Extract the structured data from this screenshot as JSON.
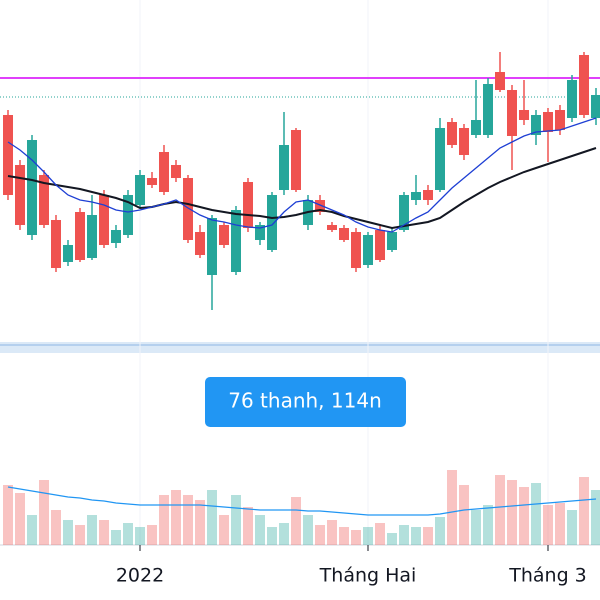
{
  "chart_data": {
    "type": "candlestick",
    "categories": [
      null,
      null,
      null,
      null,
      null,
      null,
      null,
      null,
      null,
      null,
      null,
      "2022",
      null,
      null,
      null,
      null,
      null,
      null,
      null,
      null,
      null,
      null,
      null,
      null,
      null,
      null,
      null,
      null,
      null,
      null,
      "Tháng Hai",
      null,
      null,
      null,
      null,
      null,
      null,
      null,
      null,
      null,
      null,
      null,
      null,
      null,
      null,
      "Tháng 3",
      null,
      null,
      null,
      null
    ],
    "open": [
      225,
      175,
      105,
      165,
      120,
      78,
      128,
      82,
      145,
      97,
      105,
      135,
      162,
      188,
      175,
      162,
      108,
      65,
      115,
      68,
      158,
      100,
      90,
      150,
      210,
      115,
      140,
      115,
      112,
      108,
      75,
      110,
      90,
      110,
      140,
      150,
      150,
      218,
      212,
      205,
      205,
      268,
      250,
      230,
      205,
      228,
      230,
      222,
      285,
      222
    ],
    "high": [
      230,
      180,
      205,
      170,
      125,
      100,
      132,
      145,
      150,
      115,
      150,
      170,
      168,
      195,
      180,
      165,
      115,
      125,
      118,
      134,
      162,
      118,
      148,
      228,
      212,
      145,
      145,
      118,
      115,
      112,
      108,
      114,
      112,
      148,
      165,
      155,
      222,
      222,
      216,
      260,
      262,
      288,
      255,
      260,
      230,
      232,
      235,
      265,
      288,
      252
    ],
    "low": [
      140,
      110,
      100,
      112,
      68,
      74,
      78,
      80,
      92,
      92,
      102,
      132,
      152,
      145,
      158,
      97,
      82,
      30,
      92,
      65,
      108,
      95,
      88,
      145,
      148,
      110,
      125,
      108,
      98,
      68,
      72,
      78,
      88,
      108,
      135,
      135,
      148,
      192,
      180,
      202,
      202,
      248,
      170,
      215,
      195,
      178,
      205,
      218,
      222,
      215
    ],
    "close": [
      145,
      115,
      200,
      115,
      72,
      95,
      80,
      125,
      95,
      110,
      145,
      165,
      155,
      148,
      162,
      100,
      85,
      122,
      95,
      130,
      112,
      115,
      145,
      195,
      150,
      140,
      128,
      110,
      100,
      72,
      105,
      80,
      108,
      145,
      148,
      140,
      212,
      195,
      185,
      220,
      256,
      250,
      204,
      220,
      225,
      208,
      210,
      260,
      225,
      245
    ],
    "colors": {
      "up": "#26a69a",
      "down": "#ef5350"
    },
    "ylim": [
      0,
      340
    ],
    "lines": [
      {
        "color": "#131722",
        "values": [
          164,
          162,
          160,
          157,
          155,
          153,
          151,
          148,
          145,
          142,
          138,
          132,
          133,
          136,
          138,
          136,
          133,
          130,
          128,
          126,
          125,
          124,
          122,
          123,
          125,
          128,
          130,
          128,
          124,
          121,
          118,
          115,
          112,
          114,
          116,
          118,
          122,
          130,
          138,
          145,
          152,
          158,
          163,
          168,
          172,
          176,
          180,
          184,
          188,
          192
        ]
      },
      {
        "color": "#1e3fd4",
        "values": [
          198,
          190,
          180,
          168,
          155,
          145,
          140,
          138,
          135,
          130,
          128,
          130,
          133,
          136,
          140,
          132,
          125,
          120,
          118,
          115,
          113,
          112,
          115,
          128,
          138,
          140,
          135,
          130,
          125,
          118,
          113,
          110,
          108,
          115,
          122,
          128,
          140,
          152,
          162,
          172,
          182,
          192,
          198,
          204,
          208,
          209,
          210,
          214,
          218,
          222
        ]
      }
    ],
    "levels": [
      {
        "color": "#e040fb",
        "value": 262,
        "style": "solid"
      },
      {
        "color": "#26a69a",
        "value": 243,
        "style": "dotted"
      }
    ],
    "volume": {
      "ylim": [
        0,
        100
      ],
      "values": [
        60,
        52,
        30,
        65,
        35,
        25,
        20,
        30,
        25,
        15,
        22,
        18,
        20,
        50,
        55,
        50,
        45,
        55,
        30,
        50,
        38,
        30,
        18,
        22,
        48,
        30,
        20,
        25,
        18,
        15,
        18,
        22,
        12,
        20,
        18,
        18,
        28,
        75,
        60,
        35,
        40,
        70,
        65,
        58,
        62,
        40,
        42,
        35,
        68,
        55
      ],
      "ma": {
        "color": "#2196f3",
        "values": [
          58,
          56,
          54,
          52,
          50,
          48,
          47,
          45,
          44,
          42,
          41,
          40,
          40,
          40,
          40,
          40,
          40,
          39,
          38,
          37,
          36,
          35,
          35,
          35,
          35,
          34,
          34,
          33,
          32,
          31,
          30,
          30,
          30,
          30,
          30,
          30,
          31,
          33,
          35,
          36,
          37,
          38,
          39,
          40,
          41,
          42,
          43,
          44,
          45,
          46
        ]
      }
    },
    "annotation": "76 thanh, 114n"
  }
}
